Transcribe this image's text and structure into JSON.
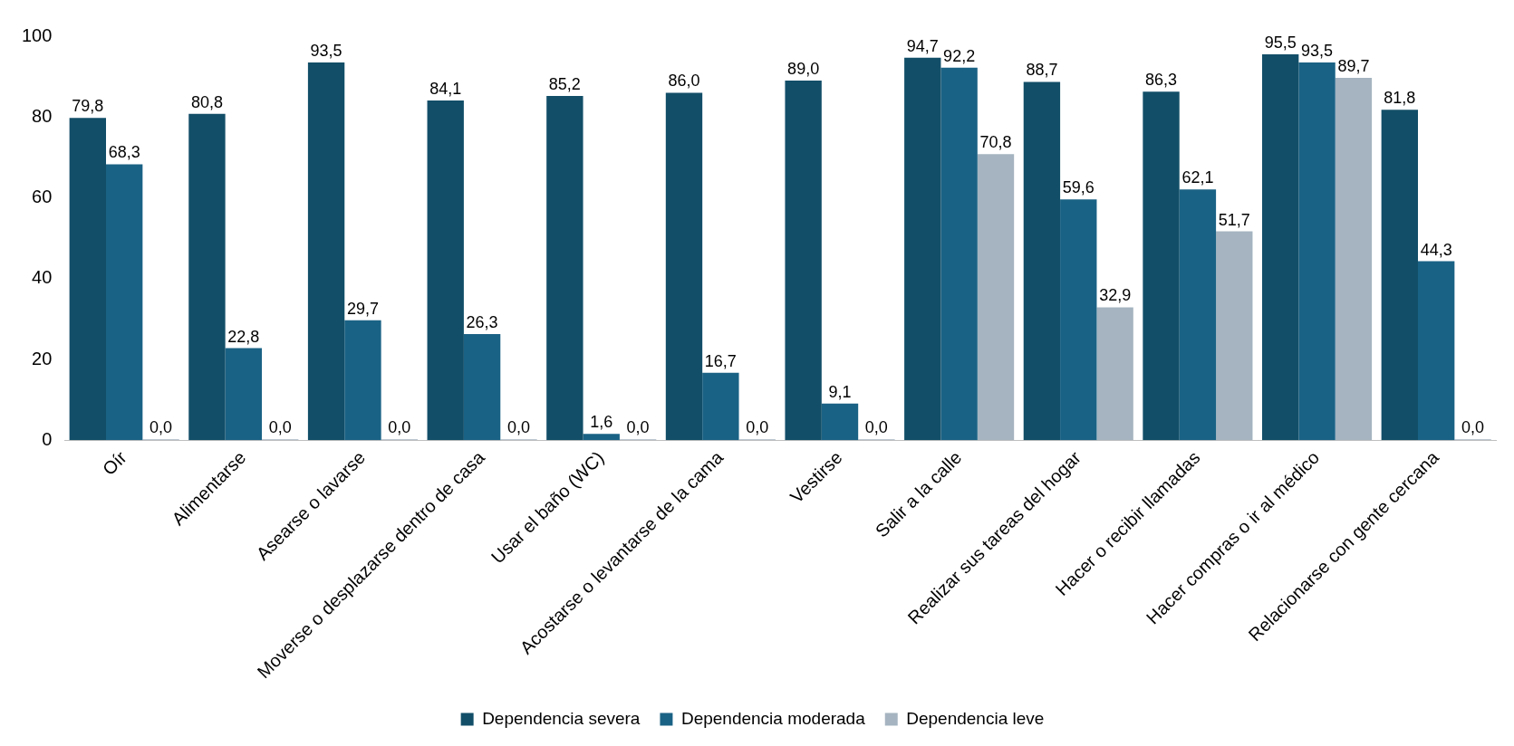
{
  "chart_data": {
    "type": "bar",
    "categories": [
      "Oír",
      "Alimentarse",
      "Asearse o lavarse",
      "Moverse o desplazarse dentro de casa",
      "Usar el baño (WC)",
      "Acostarse o levantarse de la cama",
      "Vestirse",
      "Salir a la calle",
      "Realizar sus tareas del hogar",
      "Hacer o recibir llamadas",
      "Hacer compras o ir al médico",
      "Relacionarse con gente cercana"
    ],
    "series": [
      {
        "name": "Dependencia severa",
        "color": "#124e68",
        "values": [
          79.8,
          80.8,
          93.5,
          84.1,
          85.2,
          86.0,
          89.0,
          94.7,
          88.7,
          86.3,
          95.5,
          81.8
        ],
        "value_labels": [
          "79,8",
          "80,8",
          "93,5",
          "84,1",
          "85,2",
          "86,0",
          "89,0",
          "94,7",
          "88,7",
          "86,3",
          "95,5",
          "81,8"
        ]
      },
      {
        "name": "Dependencia moderada",
        "color": "#1a6285",
        "values": [
          68.3,
          22.8,
          29.7,
          26.3,
          1.6,
          16.7,
          9.1,
          92.2,
          59.6,
          62.1,
          93.5,
          44.3
        ],
        "value_labels": [
          "68,3",
          "22,8",
          "29,7",
          "26,3",
          "1,6",
          "16,7",
          "9,1",
          "92,2",
          "59,6",
          "62,1",
          "93,5",
          "44,3"
        ]
      },
      {
        "name": "Dependencia leve",
        "color": "#a5b4c0",
        "values": [
          0,
          0,
          0,
          0,
          0,
          0,
          0,
          70.8,
          32.9,
          51.7,
          89.7,
          0
        ],
        "value_labels": [
          "0,0",
          "0,0",
          "0,0",
          "0,0",
          "0,0",
          "0,0",
          "0,0",
          "70,8",
          "32,9",
          "51,7",
          "89,7",
          "0,0"
        ]
      }
    ],
    "ylim": [
      0,
      100
    ],
    "yticks": [
      0,
      20,
      40,
      60,
      80,
      100
    ],
    "grid": false,
    "legend": "bottom"
  }
}
